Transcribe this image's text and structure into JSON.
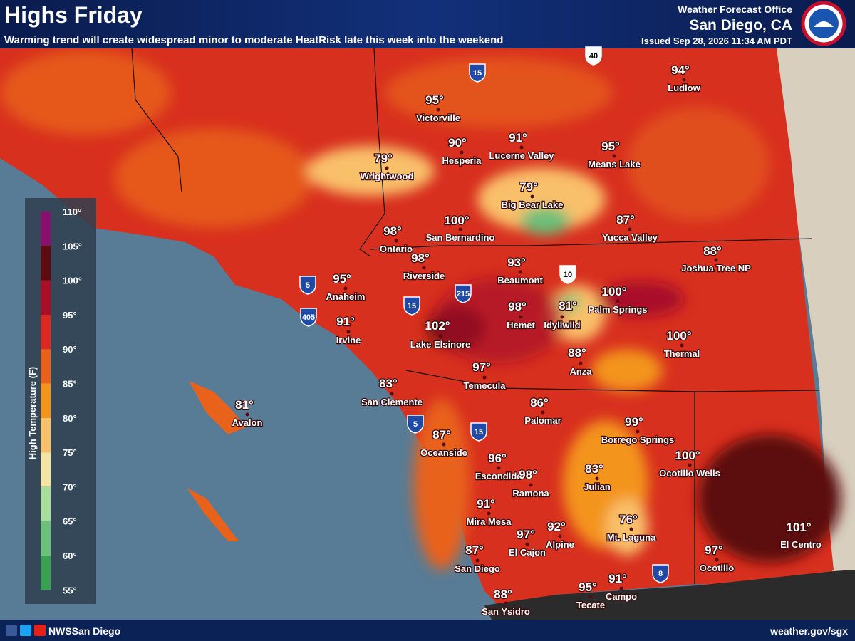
{
  "header": {
    "title": "Highs Friday",
    "subtitle": "Warming trend will create widespread minor to moderate HeatRisk late this week into the weekend",
    "office_line": "Weather Forecast Office",
    "office": "San Diego, CA",
    "issued": "Issued Sep 28, 2026 11:34 AM PDT"
  },
  "legend": {
    "title": "High Temperature (F)",
    "ticks": [
      "110°",
      "105°",
      "100°",
      "95°",
      "90°",
      "85°",
      "80°",
      "75°",
      "70°",
      "65°",
      "60°",
      "55°"
    ],
    "colors": [
      "#8a0f6e",
      "#5c0b10",
      "#a8102a",
      "#dc2a22",
      "#e8621c",
      "#f3941e",
      "#f9c06a",
      "#f3e4a4",
      "#a9dd9c",
      "#6cc07a",
      "#3aa152"
    ]
  },
  "highways": [
    "40",
    "15",
    "5",
    "405",
    "15",
    "215",
    "10",
    "15",
    "5",
    "8"
  ],
  "cities": [
    {
      "name": "Victorville",
      "temp": "95°"
    },
    {
      "name": "Ludlow",
      "temp": "94°"
    },
    {
      "name": "Hesperia",
      "temp": "90°"
    },
    {
      "name": "Lucerne Valley",
      "temp": "91°"
    },
    {
      "name": "Means Lake",
      "temp": "95°"
    },
    {
      "name": "Wrightwood",
      "temp": "79°"
    },
    {
      "name": "Big Bear Lake",
      "temp": "79°"
    },
    {
      "name": "San Bernardino",
      "temp": "100°"
    },
    {
      "name": "Yucca Valley",
      "temp": "87°"
    },
    {
      "name": "Ontario",
      "temp": "98°"
    },
    {
      "name": "Joshua Tree NP",
      "temp": "88°"
    },
    {
      "name": "Riverside",
      "temp": "98°"
    },
    {
      "name": "Beaumont",
      "temp": "93°"
    },
    {
      "name": "Anaheim",
      "temp": "95°"
    },
    {
      "name": "Palm Springs",
      "temp": "100°"
    },
    {
      "name": "Hemet",
      "temp": "98°"
    },
    {
      "name": "Idyllwild",
      "temp": "81°"
    },
    {
      "name": "Irvine",
      "temp": "91°"
    },
    {
      "name": "Lake Elsinore",
      "temp": "102°"
    },
    {
      "name": "Thermal",
      "temp": "100°"
    },
    {
      "name": "Anza",
      "temp": "88°"
    },
    {
      "name": "Temecula",
      "temp": "97°"
    },
    {
      "name": "San Clemente",
      "temp": "83°"
    },
    {
      "name": "Avalon",
      "temp": "81°"
    },
    {
      "name": "Palomar",
      "temp": "86°"
    },
    {
      "name": "Borrego Springs",
      "temp": "99°"
    },
    {
      "name": "Oceanside",
      "temp": "87°"
    },
    {
      "name": "Escondido",
      "temp": "96°"
    },
    {
      "name": "Ocotillo Wells",
      "temp": "100°"
    },
    {
      "name": "Julian",
      "temp": "83°"
    },
    {
      "name": "Ramona",
      "temp": "98°"
    },
    {
      "name": "Mira Mesa",
      "temp": "91°"
    },
    {
      "name": "Mt. Laguna",
      "temp": "76°"
    },
    {
      "name": "Alpine",
      "temp": "92°"
    },
    {
      "name": "El Cajon",
      "temp": "97°"
    },
    {
      "name": "El Centro",
      "temp": "101°"
    },
    {
      "name": "San Diego",
      "temp": "87°"
    },
    {
      "name": "Ocotillo",
      "temp": "97°"
    },
    {
      "name": "Tecate",
      "temp": "95°"
    },
    {
      "name": "Campo",
      "temp": "91°"
    },
    {
      "name": "San Ysidro",
      "temp": "88°"
    }
  ],
  "footer": {
    "handle": "NWSSan Diego",
    "url": "weather.gov/sgx"
  }
}
